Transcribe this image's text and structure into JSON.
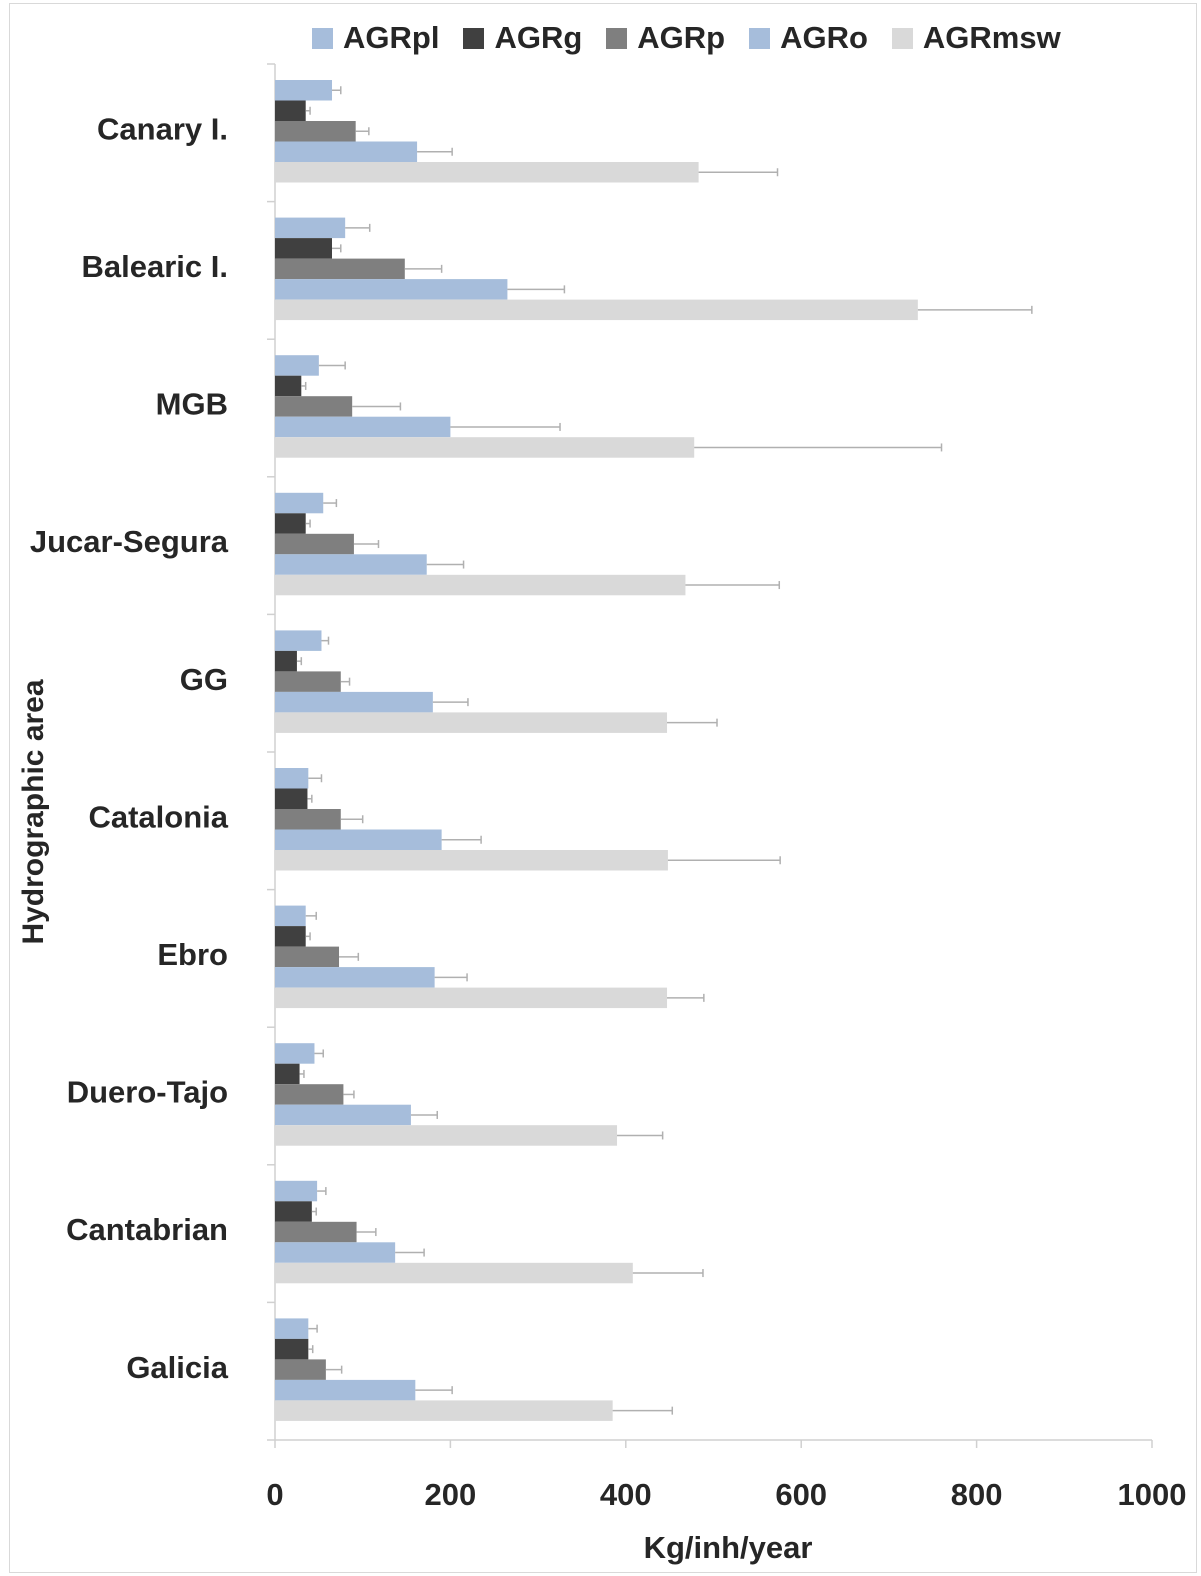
{
  "chart_data": {
    "type": "bar",
    "orientation": "horizontal",
    "xlabel": "Kg/inh/year",
    "ylabel": "Hydrographic area",
    "xlim": [
      0,
      1000
    ],
    "xticks": [
      0,
      200,
      400,
      600,
      800,
      1000
    ],
    "legend_position": "top",
    "grid": false,
    "error_bars": true,
    "categories": [
      "Canary I.",
      "Balearic I.",
      "MGB",
      "Jucar-Segura",
      "GG",
      "Catalonia",
      "Ebro",
      "Duero-Tajo",
      "Cantabrian",
      "Galicia"
    ],
    "series": [
      {
        "name": "AGRpl",
        "color": "#a6bddb",
        "values": [
          65,
          80,
          50,
          55,
          53,
          38,
          35,
          45,
          48,
          38
        ],
        "errors": [
          10,
          28,
          30,
          15,
          8,
          15,
          12,
          10,
          10,
          10
        ]
      },
      {
        "name": "AGRg",
        "color": "#404040",
        "values": [
          35,
          65,
          30,
          35,
          25,
          37,
          35,
          28,
          42,
          38
        ],
        "errors": [
          5,
          10,
          5,
          5,
          5,
          5,
          5,
          5,
          5,
          5
        ]
      },
      {
        "name": "AGRp",
        "color": "#7f7f7f",
        "values": [
          92,
          148,
          88,
          90,
          75,
          75,
          73,
          78,
          93,
          58
        ],
        "errors": [
          15,
          42,
          55,
          28,
          10,
          25,
          22,
          12,
          22,
          18
        ]
      },
      {
        "name": "AGRo",
        "color": "#a6bddb",
        "values": [
          162,
          265,
          200,
          173,
          180,
          190,
          182,
          155,
          137,
          160
        ],
        "errors": [
          40,
          65,
          125,
          42,
          40,
          45,
          37,
          30,
          33,
          42
        ]
      },
      {
        "name": "AGRmsw",
        "color": "#d9d9d9",
        "values": [
          483,
          733,
          478,
          468,
          447,
          448,
          447,
          390,
          408,
          385
        ],
        "errors": [
          90,
          130,
          282,
          107,
          57,
          128,
          42,
          52,
          80,
          68
        ]
      }
    ]
  }
}
